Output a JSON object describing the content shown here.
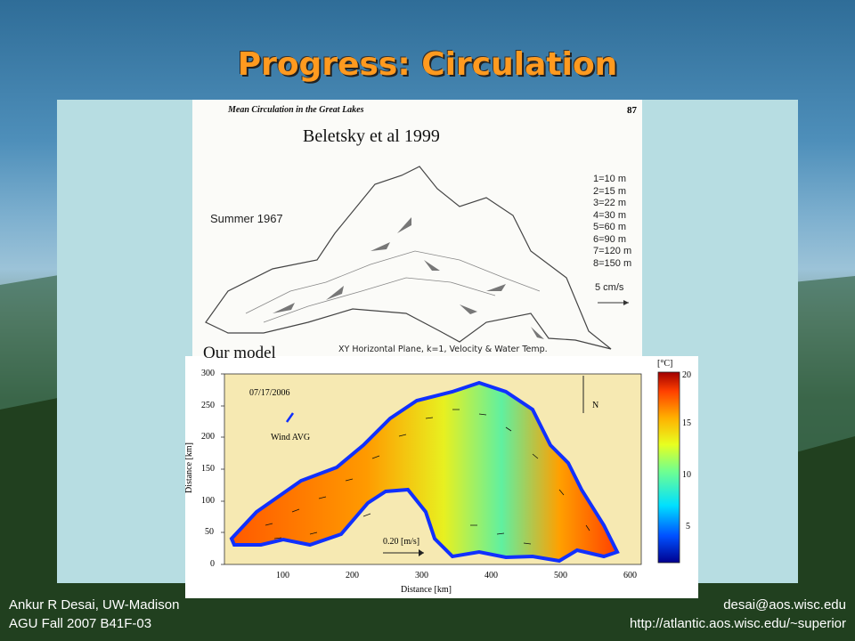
{
  "slide": {
    "title": "Progress: Circulation",
    "footer_left": [
      "Ankur R Desai, UW-Madison",
      "AGU Fall 2007 B41F-03"
    ],
    "footer_right": [
      "desai@aos.wisc.edu",
      "http://atlantic.aos.wisc.edu/~superior"
    ]
  },
  "figure_top": {
    "header": "Mean Circulation in the Great Lakes",
    "page_number": "87",
    "citation": "Beletsky et al 1999",
    "label": "Summer 1967",
    "depth_legend": [
      "1=10 m",
      "2=15 m",
      "3=22 m",
      "4=30 m",
      "5=60 m",
      "6=90 m",
      "7=120 m",
      "8=150 m"
    ],
    "scale_label": "5 cm/s"
  },
  "figure_bottom": {
    "overlay_label": "Our model",
    "caption": "XY Horizontal Plane, k=1, Velocity & Water Temp.",
    "date": "07/17/2006",
    "wind_label": "Wind AVG",
    "north_label": "N",
    "vector_scale": "0.20 [m/s]",
    "xlabel": "Distance [km]",
    "ylabel": "Distance [km]",
    "x_ticks": [
      "100",
      "200",
      "300",
      "400",
      "500",
      "600"
    ],
    "y_ticks": [
      "0",
      "50",
      "100",
      "150",
      "200",
      "250",
      "300"
    ],
    "colorbar_unit": "[°C]",
    "colorbar_ticks": [
      "20",
      "15",
      "10",
      "5"
    ],
    "colormap": [
      "#00008f",
      "#0050ff",
      "#00e0ff",
      "#70ff90",
      "#e8ff20",
      "#ffb000",
      "#ff4000",
      "#a00000"
    ]
  }
}
